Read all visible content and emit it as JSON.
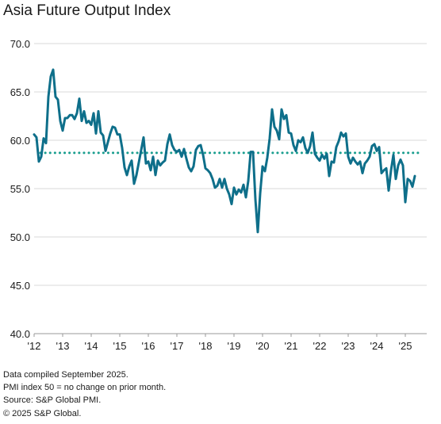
{
  "title": "Asia Future Output Index",
  "footnotes": [
    "Data compiled September 2025.",
    "PMI index 50 = no change on prior month.",
    "Source: S&P Global PMI.",
    "© 2025 S&P Global."
  ],
  "colors": {
    "series": "#0e6f8a",
    "average": "#1a9e8f",
    "grid": "#d9d9d9",
    "text": "#1a1a1a"
  },
  "chart_data": {
    "type": "line",
    "title": "Asia Future Output Index",
    "xlabel": "",
    "ylabel": "",
    "ylim": [
      40,
      70
    ],
    "y_ticks": [
      40,
      45,
      50,
      55,
      60,
      65,
      70
    ],
    "y_tick_labels": [
      "40.0",
      "45.0",
      "50.0",
      "55.0",
      "60.0",
      "65.0",
      "70.0"
    ],
    "x_tick_labels": [
      "'12",
      "'13",
      "'14",
      "'15",
      "'16",
      "'17",
      "'18",
      "'19",
      "'20",
      "'21",
      "'22",
      "'23",
      "'24",
      "'25"
    ],
    "x_tick_years": [
      2012,
      2013,
      2014,
      2015,
      2016,
      2017,
      2018,
      2019,
      2020,
      2021,
      2022,
      2023,
      2024,
      2025
    ],
    "xlim": [
      2012.0,
      2025.75
    ],
    "grid": true,
    "reference_line": {
      "style": "dotted",
      "value": 58.7
    },
    "series": [
      {
        "start": "2012-01",
        "frequency": "monthly",
        "values": [
          60.6,
          60.3,
          57.8,
          58.3,
          60.2,
          59.7,
          64.5,
          66.6,
          67.3,
          64.5,
          64.2,
          62.0,
          61.0,
          62.3,
          62.3,
          62.6,
          62.6,
          62.2,
          62.8,
          64.3,
          62.0,
          63.0,
          61.8,
          62.0,
          61.6,
          62.8,
          60.7,
          63.0,
          60.8,
          60.5,
          58.9,
          59.8,
          60.7,
          61.4,
          61.3,
          60.6,
          60.6,
          59.2,
          57.2,
          56.4,
          57.3,
          57.9,
          55.5,
          56.4,
          57.7,
          59.0,
          60.3,
          57.6,
          57.8,
          56.9,
          58.3,
          56.4,
          57.9,
          57.4,
          57.7,
          57.9,
          59.6,
          60.6,
          59.5,
          59.0,
          58.8,
          59.0,
          58.3,
          59.1,
          58.1,
          57.2,
          56.8,
          57.3,
          59.0,
          59.4,
          59.5,
          58.5,
          57.1,
          56.9,
          56.6,
          56.0,
          55.1,
          55.3,
          56.0,
          55.1,
          56.0,
          55.0,
          54.4,
          53.4,
          55.1,
          54.4,
          54.9,
          54.6,
          55.4,
          54.1,
          55.8,
          58.8,
          58.8,
          53.9,
          50.5,
          54.5,
          57.3,
          56.8,
          58.2,
          60.2,
          63.2,
          61.4,
          61.0,
          60.1,
          63.2,
          62.2,
          62.6,
          60.8,
          60.7,
          59.5,
          58.9,
          60.0,
          59.8,
          60.3,
          59.2,
          58.7,
          59.4,
          60.8,
          58.6,
          58.2,
          57.9,
          58.5,
          58.1,
          58.6,
          56.3,
          57.8,
          57.7,
          59.3,
          59.9,
          60.8,
          60.4,
          60.7,
          58.3,
          57.6,
          58.2,
          57.8,
          57.5,
          57.8,
          56.6,
          57.6,
          57.9,
          58.3,
          59.4,
          59.6,
          58.9,
          59.3,
          56.6,
          56.9,
          57.1,
          54.8,
          56.9,
          58.5,
          56.0,
          57.4,
          58.0,
          57.4,
          53.6,
          56.0,
          55.8,
          55.2,
          56.3
        ]
      }
    ]
  }
}
